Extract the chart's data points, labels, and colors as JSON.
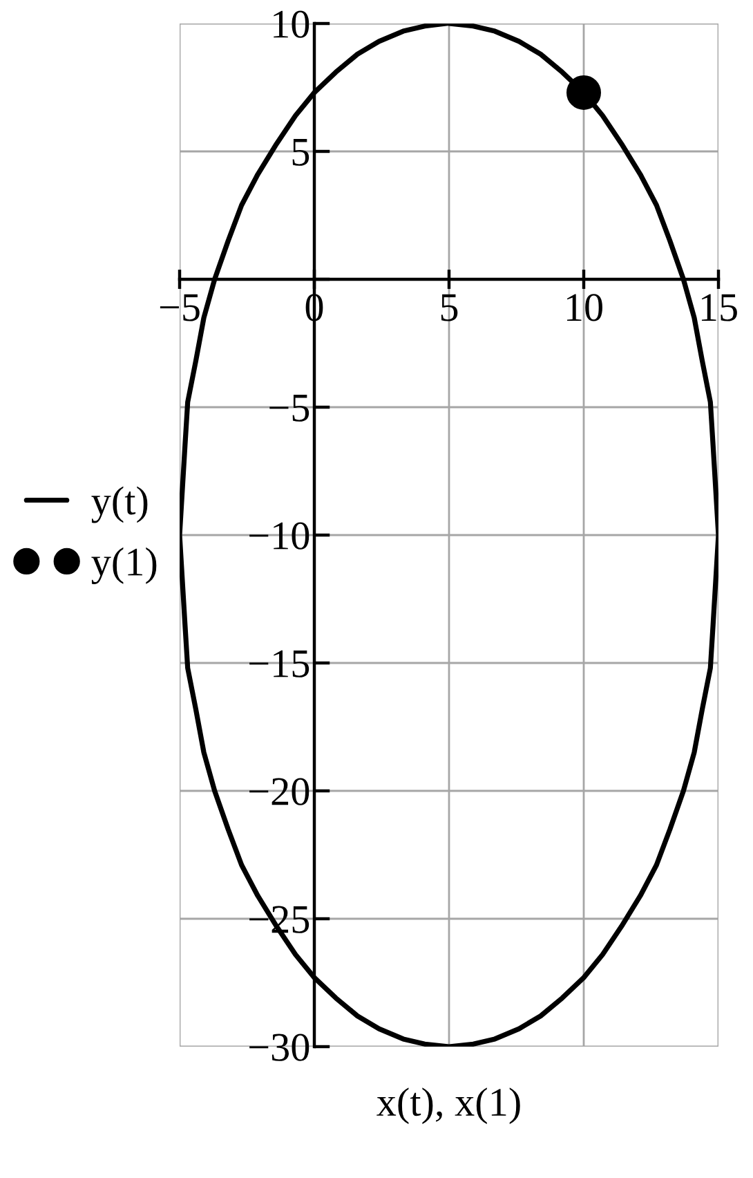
{
  "chart_data": {
    "type": "line",
    "xlabel": "x(t), x(1)",
    "legend": "left",
    "grid": true,
    "xlim": [
      -5,
      15
    ],
    "ylim": [
      -30,
      10
    ],
    "xticks": [
      {
        "value": -5,
        "label": "−5"
      },
      0,
      5,
      10,
      15
    ],
    "yticks": [
      10,
      5,
      {
        "value": 0,
        "label": null
      },
      {
        "value": -5,
        "label": "−5"
      },
      {
        "value": -10,
        "label": "−10"
      },
      {
        "value": -15,
        "label": "−15"
      },
      {
        "value": -20,
        "label": "−20"
      },
      {
        "value": -25,
        "label": "−25"
      },
      {
        "value": -30,
        "label": "−30"
      }
    ],
    "series": [
      {
        "name": "y(t)",
        "color": "#000000",
        "line_style": "solid",
        "x": [
          5,
          5.9,
          6.7,
          7.6,
          8.4,
          9.2,
          10,
          10.7,
          11.4,
          12.1,
          12.7,
          13.2,
          13.7,
          14.1,
          14.4,
          14.7,
          14.8,
          15,
          14.8,
          14.7,
          14.4,
          14.1,
          13.7,
          13.2,
          12.7,
          12.1,
          11.4,
          10.7,
          10,
          9.2,
          8.4,
          7.6,
          6.7,
          5.9,
          5,
          4.1,
          3.3,
          2.4,
          1.6,
          0.8,
          0,
          -0.7,
          -1.4,
          -2.1,
          -2.7,
          -3.2,
          -3.7,
          -4.1,
          -4.4,
          -4.7,
          -4.8,
          -5,
          -4.8,
          -4.7,
          -4.4,
          -4.1,
          -3.7,
          -3.2,
          -2.7,
          -2.1,
          -1.4,
          -0.7,
          0,
          0.8,
          1.6,
          2.4,
          3.3,
          4.1,
          4.9
        ],
        "values": [
          10,
          9.9,
          9.7,
          9.3,
          8.8,
          8.1,
          7.3,
          6.4,
          5.3,
          4.1,
          2.9,
          1.5,
          0,
          -1.5,
          -3.2,
          -4.8,
          -6.5,
          -10,
          -13.5,
          -15.2,
          -16.8,
          -18.5,
          -20,
          -21.5,
          -22.9,
          -24.1,
          -25.3,
          -26.4,
          -27.3,
          -28.1,
          -28.8,
          -29.3,
          -29.7,
          -29.9,
          -30,
          -29.9,
          -29.7,
          -29.3,
          -28.8,
          -28.1,
          -27.3,
          -26.4,
          -25.3,
          -24.1,
          -22.9,
          -21.5,
          -20,
          -18.5,
          -16.8,
          -15.2,
          -13.5,
          -10,
          -6.5,
          -4.8,
          -3.2,
          -1.5,
          0,
          1.5,
          2.9,
          4.1,
          5.3,
          6.4,
          7.3,
          8.1,
          8.8,
          9.3,
          9.7,
          9.9,
          10
        ]
      },
      {
        "name": "y(1)",
        "type": "scatter",
        "color": "#000000",
        "marker": "circle",
        "x": [
          10
        ],
        "values": [
          7.3
        ]
      }
    ]
  }
}
